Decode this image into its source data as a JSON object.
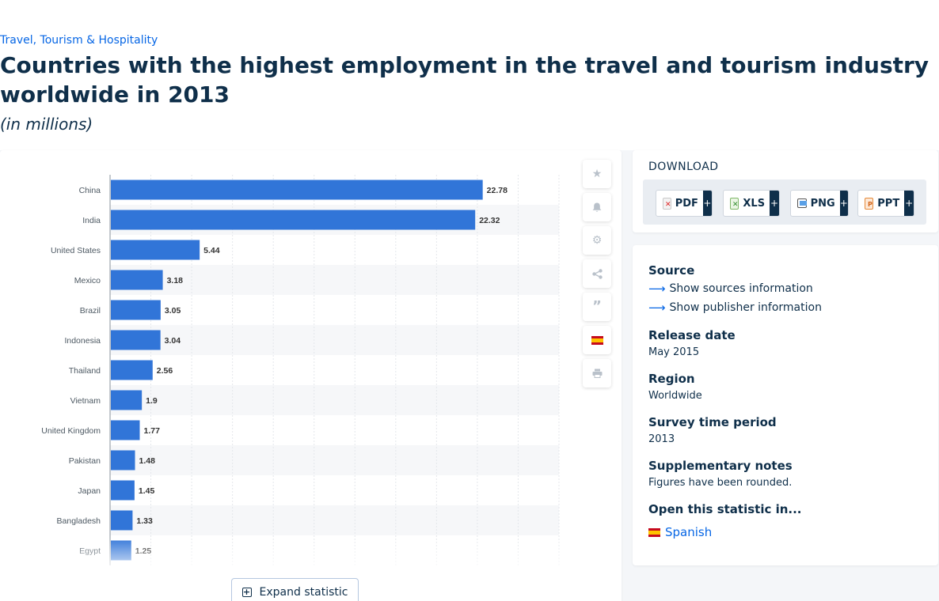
{
  "breadcrumb": "Travel, Tourism & Hospitality",
  "title": "Countries with the highest employment in the travel and tourism industry worldwide in 2013",
  "subtitle": "(in millions)",
  "colors": {
    "bar": "#3175d8",
    "accent": "#0666e5",
    "navy": "#0f2f4a"
  },
  "tools": [
    {
      "icon": "star-icon",
      "label": ""
    },
    {
      "icon": "bell-icon",
      "label": ""
    },
    {
      "icon": "gear-icon",
      "label": ""
    },
    {
      "icon": "share-icon",
      "label": ""
    },
    {
      "icon": "quote-icon",
      "label": ""
    },
    {
      "icon": "spain-flag-icon",
      "label": ""
    },
    {
      "icon": "print-icon",
      "label": ""
    }
  ],
  "expand_label": "Expand statistic",
  "download": {
    "title": "DOWNLOAD",
    "buttons": [
      {
        "label": "PDF",
        "plus": "+"
      },
      {
        "label": "XLS",
        "plus": "+"
      },
      {
        "label": "PNG",
        "plus": "+"
      },
      {
        "label": "PPT",
        "plus": "+"
      }
    ]
  },
  "info": {
    "source_heading": "Source",
    "show_sources": "Show sources information",
    "show_publisher": "Show publisher information",
    "release_heading": "Release date",
    "release_value": "May 2015",
    "region_heading": "Region",
    "region_value": "Worldwide",
    "survey_heading": "Survey time period",
    "survey_value": "2013",
    "notes_heading": "Supplementary notes",
    "notes_value": "Figures have been rounded.",
    "open_heading": "Open this statistic in...",
    "open_lang": "Spanish"
  },
  "chart_data": {
    "type": "bar",
    "orientation": "horizontal",
    "categories": [
      "China",
      "India",
      "United States",
      "Mexico",
      "Brazil",
      "Indonesia",
      "Thailand",
      "Vietnam",
      "United Kingdom",
      "Pakistan",
      "Japan",
      "Bangladesh",
      "Egypt"
    ],
    "values": [
      22.78,
      22.32,
      5.44,
      3.18,
      3.05,
      3.04,
      2.56,
      1.9,
      1.77,
      1.48,
      1.45,
      1.33,
      1.25
    ],
    "xlim": [
      0,
      27.5
    ],
    "grid": true,
    "title": "",
    "xlabel": "",
    "ylabel": ""
  }
}
